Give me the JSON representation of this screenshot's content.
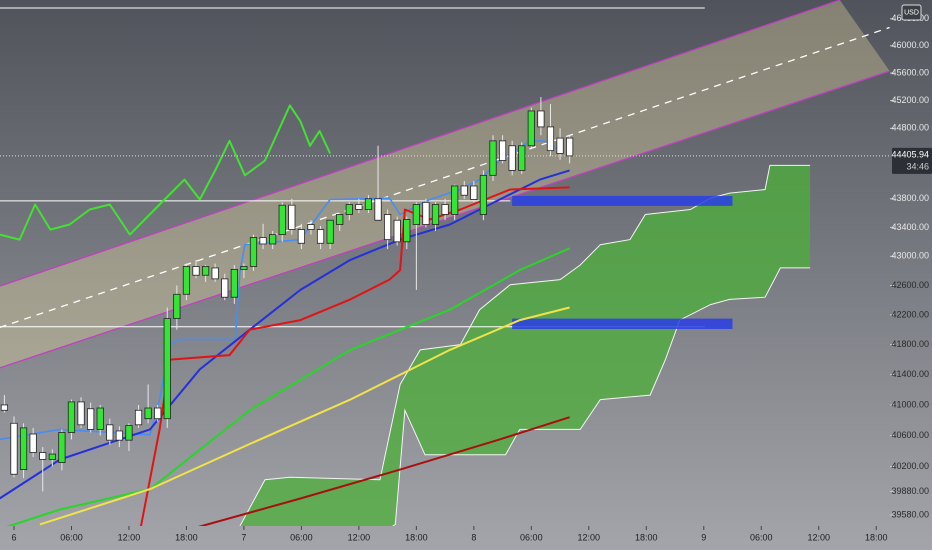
{
  "chart_data": {
    "type": "candlestick",
    "log": true,
    "xlim": [
      -1.46,
      91.44
    ],
    "ylim": [
      39453,
      46680
    ],
    "xticks": [
      {
        "value": 0,
        "label": "6"
      },
      {
        "value": 6,
        "label": "06:00"
      },
      {
        "value": 12,
        "label": "12:00"
      },
      {
        "value": 18,
        "label": "18:00"
      },
      {
        "value": 24,
        "label": "7"
      },
      {
        "value": 30,
        "label": "06:00"
      },
      {
        "value": 36,
        "label": "12:00"
      },
      {
        "value": 42,
        "label": "18:00"
      },
      {
        "value": 48,
        "label": "8"
      },
      {
        "value": 54,
        "label": "06:00"
      },
      {
        "value": 60,
        "label": "12:00"
      },
      {
        "value": 66,
        "label": "18:00"
      },
      {
        "value": 72,
        "label": "9"
      },
      {
        "value": 78,
        "label": "06:00"
      },
      {
        "value": 84,
        "label": "12:00"
      },
      {
        "value": 90,
        "label": "18:00"
      }
    ],
    "yticks": [
      {
        "value": 46400,
        "label": "46400.00"
      },
      {
        "value": 46000,
        "label": "46000.00"
      },
      {
        "value": 45600,
        "label": "45600.00"
      },
      {
        "value": 45200,
        "label": "45200.00"
      },
      {
        "value": 44800,
        "label": "44800.00"
      },
      {
        "value": 43800,
        "label": "43800.00"
      },
      {
        "value": 43400,
        "label": "43400.00"
      },
      {
        "value": 43000,
        "label": "43000.00"
      },
      {
        "value": 42600,
        "label": "42600.00"
      },
      {
        "value": 42200,
        "label": "42200.00"
      },
      {
        "value": 41800,
        "label": "41800.00"
      },
      {
        "value": 41400,
        "label": "41400.00"
      },
      {
        "value": 41000,
        "label": "41000.00"
      },
      {
        "value": 40600,
        "label": "40600.00"
      },
      {
        "value": 40200,
        "label": "40200.00"
      },
      {
        "value": 39880,
        "label": "39880.00"
      },
      {
        "value": 39580,
        "label": "39580.00"
      }
    ],
    "currency": "USD",
    "countdown": "34:46",
    "last_price": 44405.94,
    "up_color": "#33e633",
    "down_color": "#ffffff",
    "candles": {
      "x": [
        -1,
        0,
        1,
        2,
        3,
        4,
        5,
        6,
        7,
        8,
        9,
        10,
        11,
        12,
        13,
        14,
        15,
        16,
        17,
        18,
        19,
        20,
        21,
        22,
        23,
        24,
        25,
        26,
        27,
        28,
        29,
        30,
        31,
        32,
        33,
        34,
        35,
        36,
        37,
        38,
        39,
        40,
        41,
        42,
        43,
        44,
        45,
        46,
        47,
        48,
        49,
        50,
        51,
        52,
        53,
        54,
        55,
        56,
        57,
        58
      ],
      "open": [
        41000,
        40760,
        40160,
        40620,
        40380,
        40290,
        40250,
        40640,
        41040,
        40950,
        40680,
        40740,
        40660,
        40540,
        40930,
        40820,
        40960,
        40820,
        42150,
        42480,
        42860,
        42740,
        42840,
        42690,
        42440,
        42820,
        42860,
        43260,
        43170,
        43300,
        43710,
        43370,
        43440,
        43370,
        43180,
        43440,
        43580,
        43720,
        43650,
        43800,
        43580,
        43500,
        43200,
        43440,
        43750,
        43440,
        43720,
        43580,
        43980,
        43980,
        43580,
        44130,
        44620,
        44550,
        44200,
        44550,
        45050,
        44820,
        44660,
        44660
      ],
      "high": [
        41130,
        40850,
        40760,
        40700,
        40450,
        40420,
        40680,
        41070,
        41100,
        41030,
        41000,
        40820,
        40720,
        40760,
        41000,
        41270,
        41000,
        42300,
        42600,
        42900,
        42950,
        42880,
        42900,
        42760,
        42880,
        42900,
        43300,
        43450,
        43350,
        43750,
        43800,
        43450,
        43500,
        43420,
        43500,
        43600,
        43750,
        43800,
        43850,
        44550,
        43650,
        43550,
        43550,
        43750,
        43800,
        43750,
        43800,
        44000,
        44050,
        44050,
        44200,
        44700,
        44700,
        44620,
        44600,
        45100,
        45250,
        45150,
        44800,
        44700
      ],
      "low": [
        40900,
        40060,
        40050,
        40320,
        39880,
        40200,
        40150,
        40550,
        40700,
        40640,
        40600,
        40480,
        40450,
        40400,
        40700,
        40760,
        40780,
        40700,
        42000,
        42400,
        42700,
        42650,
        42650,
        42400,
        42350,
        42700,
        42800,
        43100,
        43100,
        43200,
        43300,
        43100,
        43300,
        43100,
        43100,
        43350,
        43500,
        43600,
        43600,
        43500,
        43100,
        43150,
        43100,
        42540,
        43400,
        43350,
        43500,
        43500,
        43800,
        43750,
        43500,
        44050,
        44300,
        44130,
        44150,
        44500,
        44700,
        44400,
        44350,
        44300
      ],
      "close": [
        40930,
        40100,
        40700,
        40380,
        40290,
        40360,
        40640,
        41040,
        40740,
        40680,
        40960,
        40540,
        40540,
        40730,
        40740,
        40960,
        40820,
        42150,
        42480,
        42860,
        42740,
        42860,
        42690,
        42440,
        42820,
        42860,
        43260,
        43170,
        43300,
        43710,
        43370,
        43180,
        43370,
        43180,
        43500,
        43580,
        43720,
        43650,
        43800,
        43500,
        43230,
        43200,
        43510,
        43720,
        43440,
        43720,
        43580,
        43980,
        43850,
        43790,
        44130,
        44620,
        44340,
        44200,
        44550,
        45050,
        44820,
        44480,
        44440,
        44405.94
      ]
    },
    "channel": {
      "fill": "#e8d9a0",
      "stroke": "#c040c0",
      "upper": {
        "x": [
          -1.5,
          86.2
        ],
        "values": [
          42590,
          46680
        ]
      },
      "middle": {
        "x": [
          -1.5,
          91.4
        ],
        "values": [
          42030,
          46270
        ]
      },
      "lower": {
        "x": [
          -1.5,
          91.4
        ],
        "values": [
          41490,
          45630
        ]
      }
    },
    "cloud": {
      "color": "#4caf3a",
      "upper": {
        "x": [
          23.1,
          26.2,
          28.8,
          38.2,
          40.3,
          42.4,
          46.6,
          48.6,
          51.8,
          57,
          59.1,
          61.2,
          64.3,
          65.9,
          70.6,
          72.7,
          74.7,
          78.4,
          78.9,
          83.1
        ],
        "values": [
          39330,
          40030,
          40060,
          40030,
          41270,
          41730,
          41800,
          42270,
          42610,
          42680,
          42880,
          43160,
          43230,
          43580,
          43650,
          43810,
          43880,
          43930,
          44270,
          44270
        ]
      },
      "lower": {
        "x": [
          23.1,
          38.2,
          39.8,
          40.8,
          42.9,
          51.3,
          52.8,
          59.1,
          61.2,
          66.4,
          68,
          69.5,
          72.7,
          74.7,
          78.4,
          80,
          83.1
        ],
        "values": [
          39330,
          39330,
          39460,
          40930,
          40350,
          40350,
          40680,
          40680,
          41070,
          41130,
          41600,
          42130,
          42340,
          42410,
          42440,
          42840,
          42840
        ]
      }
    },
    "lines": [
      {
        "color": "#0d0d0d",
        "width": 0,
        "x": [],
        "values": []
      },
      {
        "color": "#4a8cf0",
        "width": 1.6,
        "x": [
          -1.5,
          4.8,
          14.2,
          15.2,
          16.3,
          17.3,
          23.1,
          23.6,
          24.1,
          29.9,
          33,
          39.2,
          40.3,
          43.4,
          46.6,
          48.6,
          50.7,
          53.9,
          55.4,
          57
        ],
        "values": [
          40550,
          40680,
          40610,
          41070,
          41800,
          41870,
          41870,
          42810,
          43160,
          43230,
          43790,
          43810,
          43580,
          43790,
          43930,
          44070,
          44340,
          44620,
          44620,
          44480
        ]
      },
      {
        "color": "#2430d8",
        "width": 2,
        "x": [
          -1.5,
          4.8,
          14.2,
          19.4,
          24.6,
          29.9,
          35.1,
          40.3,
          45.5,
          50.7,
          54.9,
          58
        ],
        "values": [
          39790,
          40290,
          40680,
          41470,
          42000,
          42540,
          42950,
          43230,
          43440,
          43790,
          44070,
          44200
        ]
      },
      {
        "color": "#e01414",
        "width": 2,
        "x": [
          13.2,
          15.2,
          16.3,
          22.5,
          24.6,
          29.9,
          35.1,
          39.2,
          40.3,
          40.8,
          43.4,
          46.6,
          51.8,
          58
        ],
        "values": [
          39400,
          40680,
          41600,
          41660,
          42000,
          42130,
          42410,
          42680,
          42810,
          43650,
          43510,
          43650,
          43930,
          43960
        ]
      },
      {
        "color": "#2ad42a",
        "width": 2,
        "x": [
          -1.5,
          4.8,
          14.2,
          24.6,
          35.1,
          45.5,
          52.8,
          58
        ],
        "values": [
          39400,
          39650,
          39910,
          40930,
          41730,
          42270,
          42810,
          43110
        ]
      },
      {
        "color": "#f2e24a",
        "width": 2,
        "x": [
          2.7,
          14.2,
          24.6,
          35.1,
          45.5,
          52.8,
          58
        ],
        "values": [
          39460,
          39910,
          40490,
          41070,
          41730,
          42130,
          42300
        ]
      },
      {
        "color": "#a81010",
        "width": 2,
        "x": [
          18.4,
          29.9,
          40.3,
          50.7,
          58
        ],
        "values": [
          39400,
          39790,
          40160,
          40550,
          40840
        ]
      },
      {
        "color": "#44e034",
        "width": 2,
        "x": [
          -1.5,
          0.6,
          2.2,
          3.8,
          5.8,
          7.9,
          10,
          12.1,
          15.2,
          17.8,
          19.4,
          21,
          22.5,
          24.1,
          26.2,
          28.8,
          29.9,
          30.9,
          31.9,
          33
        ],
        "values": [
          43300,
          43230,
          43720,
          43370,
          43440,
          43650,
          43720,
          43300,
          43720,
          44070,
          43790,
          44200,
          44620,
          44130,
          44340,
          45130,
          44900,
          44550,
          44760,
          44440
        ]
      }
    ],
    "zones": [
      {
        "color": "#2a3ee6",
        "x": [
          52,
          75
        ],
        "values": [
          43700,
          43840
        ]
      },
      {
        "color": "#2a3ee6",
        "x": [
          52,
          75
        ],
        "values": [
          42010,
          42150
        ]
      }
    ],
    "hlines": [
      {
        "color": "#ffffff",
        "x": [
          -1.5,
          72.1
        ],
        "value": 46560
      },
      {
        "color": "#ffffff",
        "x": [
          -1.5,
          51.8
        ],
        "value": 43770
      },
      {
        "color": "#ffffff",
        "x": [
          -1.5,
          72.1
        ],
        "value": 42040
      }
    ]
  }
}
